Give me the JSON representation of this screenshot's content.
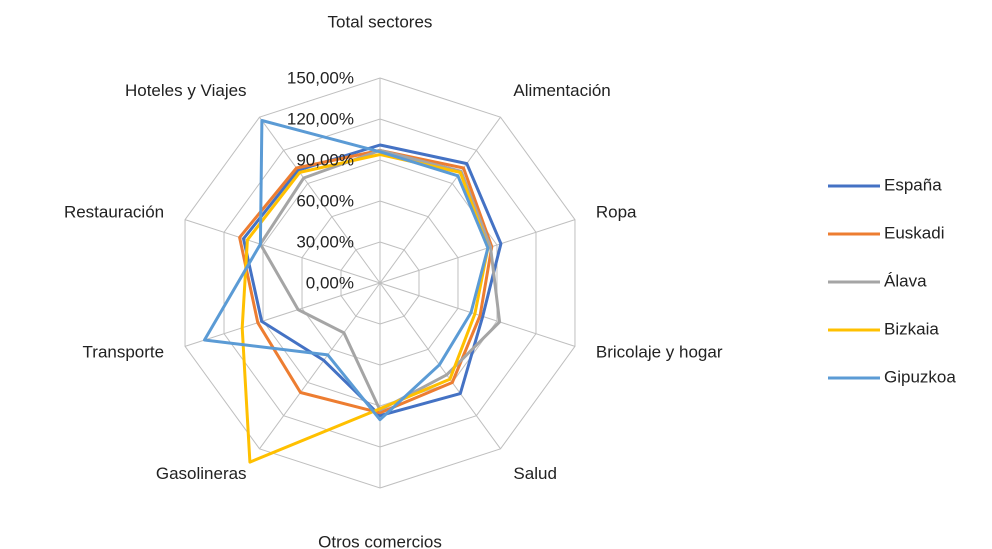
{
  "chart_data": {
    "type": "radar",
    "categories": [
      "Total sectores",
      "Alimentación",
      "Ropa",
      "Bricolaje y hogar",
      "Salud",
      "Otros comercios",
      "Gasolineras",
      "Transporte",
      "Restauración",
      "Hoteles y Viajes"
    ],
    "ylim": [
      0,
      150
    ],
    "yticks": [
      {
        "value": 0,
        "label": "0,00%"
      },
      {
        "value": 30,
        "label": "30,00%"
      },
      {
        "value": 60,
        "label": "60,00%"
      },
      {
        "value": 90,
        "label": "90,00%"
      },
      {
        "value": 120,
        "label": "120,00%"
      },
      {
        "value": 150,
        "label": "150,00%"
      }
    ],
    "grid": true,
    "legend": "right",
    "series": [
      {
        "name": "España",
        "color": "#4472c4",
        "values": [
          101,
          108,
          93,
          79,
          100,
          97,
          70,
          91,
          105,
          102
        ]
      },
      {
        "name": "Euskadi",
        "color": "#ed7d31",
        "values": [
          97,
          104,
          86,
          77,
          90,
          95,
          99,
          94,
          108,
          104
        ]
      },
      {
        "name": "Álava",
        "color": "#a5a5a5",
        "values": [
          97,
          101,
          85,
          92,
          83,
          93,
          45,
          63,
          92,
          95
        ]
      },
      {
        "name": "Bizkaia",
        "color": "#ffc000",
        "values": [
          94,
          100,
          83,
          73,
          87,
          92,
          162,
          106,
          102,
          100
        ]
      },
      {
        "name": "Gipuzkoa",
        "color": "#5b9bd5",
        "values": [
          96,
          97,
          83,
          70,
          74,
          100,
          65,
          135,
          92,
          147
        ]
      }
    ]
  }
}
